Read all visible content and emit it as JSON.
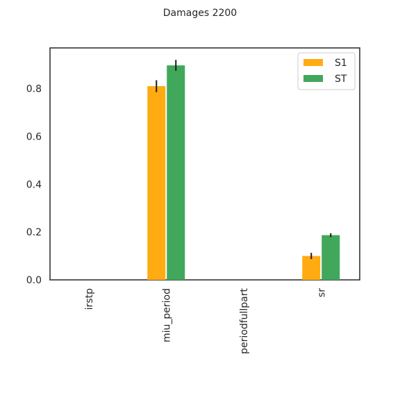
{
  "chart_data": {
    "type": "bar",
    "title": "Damages 2200",
    "xlabel": "",
    "ylabel": "",
    "categories": [
      "irstp",
      "miu_period",
      "periodfullpart",
      "sr"
    ],
    "series": [
      {
        "name": "S1",
        "color": "#ffab11",
        "values": [
          0,
          0.81,
          0,
          0.1
        ],
        "errors": [
          0,
          0.025,
          0,
          0.013
        ]
      },
      {
        "name": "ST",
        "color": "#41a85b",
        "values": [
          0,
          0.897,
          0,
          0.187
        ],
        "errors": [
          0,
          0.023,
          0,
          0.008
        ]
      }
    ],
    "ylim": [
      0,
      0.97
    ],
    "yticks": [
      0.0,
      0.2,
      0.4,
      0.6,
      0.8
    ],
    "ytick_labels": [
      "0.0",
      "0.2",
      "0.4",
      "0.6",
      "0.8"
    ],
    "grid": false,
    "legend_position": "top-right",
    "x_tick_rotation": "vertical"
  }
}
